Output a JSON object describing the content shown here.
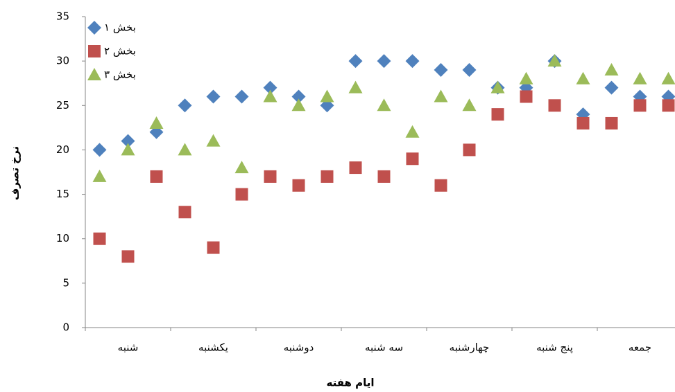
{
  "chart_data": {
    "type": "scatter",
    "x_label": "ایام هفته",
    "y_label": "نرخ تصرف",
    "categories": [
      null,
      "شنبه",
      null,
      null,
      "یکشنبه",
      null,
      null,
      "دوشنبه",
      null,
      null,
      "سه شنبه",
      null,
      null,
      "چهارشنبه",
      null,
      null,
      "پنج شنبه",
      null,
      null,
      "جمعه",
      null
    ],
    "ylim": [
      0,
      35
    ],
    "yticks": [
      0,
      5,
      10,
      15,
      20,
      25,
      30,
      35
    ],
    "grid": false,
    "legend": "top-left",
    "series": [
      {
        "name": "بخش ۱",
        "color": "#4f81bd",
        "marker": "diamond",
        "values": [
          20,
          21,
          22,
          25,
          26,
          26,
          27,
          26,
          25,
          30,
          30,
          30,
          29,
          29,
          27,
          27,
          30,
          24,
          27,
          26,
          26
        ]
      },
      {
        "name": "بخش ۲",
        "color": "#c0504d",
        "marker": "square",
        "values": [
          10,
          8,
          17,
          13,
          9,
          15,
          17,
          16,
          17,
          18,
          17,
          19,
          16,
          20,
          24,
          26,
          25,
          23,
          23,
          25,
          25
        ]
      },
      {
        "name": "بخش ۳",
        "color": "#9bbb59",
        "marker": "triangle",
        "values": [
          17,
          20,
          23,
          20,
          21,
          18,
          26,
          25,
          26,
          27,
          25,
          22,
          26,
          25,
          27,
          28,
          30,
          28,
          29,
          28,
          28
        ]
      }
    ]
  }
}
